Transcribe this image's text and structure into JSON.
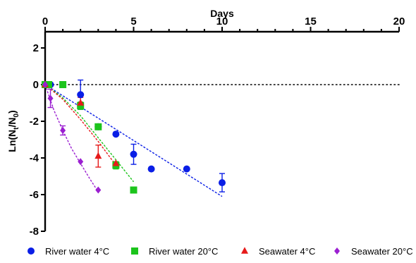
{
  "chart_data": {
    "type": "scatter",
    "title": "",
    "xlabel": "Days",
    "ylabel_parts": [
      "Ln(N",
      "t",
      "/N",
      "0",
      ")"
    ],
    "xlim": [
      0,
      20
    ],
    "ylim": [
      -8,
      2
    ],
    "x_ticks": [
      0,
      5,
      10,
      15,
      20
    ],
    "y_ticks": [
      2,
      0,
      -2,
      -4,
      -6,
      -8
    ],
    "x_minor_ticks": [
      1,
      2,
      3,
      4,
      6,
      7,
      8,
      9,
      11,
      12,
      13,
      14,
      16,
      17,
      18,
      19
    ],
    "x_axis_position": "top",
    "reference_line_y": 0,
    "legend_position": "bottom",
    "series": [
      {
        "name": "River water 4°C",
        "color": "#0a1ee6",
        "marker": "circle",
        "points": [
          {
            "x": 0,
            "y": 0
          },
          {
            "x": 0.1,
            "y": 0
          },
          {
            "x": 0.2,
            "y": 0
          },
          {
            "x": 0.3,
            "y": 0
          },
          {
            "x": 1,
            "y": 0
          },
          {
            "x": 2,
            "y": -0.55,
            "err": 0.8
          },
          {
            "x": 3,
            "y": -2.3
          },
          {
            "x": 4,
            "y": -2.7
          },
          {
            "x": 5,
            "y": -3.8,
            "err": 0.55
          },
          {
            "x": 6,
            "y": -4.6
          },
          {
            "x": 8,
            "y": -4.6
          },
          {
            "x": 10,
            "y": -5.35,
            "err": 0.5
          }
        ],
        "fit": [
          [
            0,
            0
          ],
          [
            10,
            -6.1
          ]
        ]
      },
      {
        "name": "River water 20°C",
        "color": "#1cc41c",
        "marker": "square",
        "points": [
          {
            "x": 0,
            "y": 0
          },
          {
            "x": 0.2,
            "y": 0
          },
          {
            "x": 1,
            "y": 0
          },
          {
            "x": 2,
            "y": -1.15,
            "err": 0.2
          },
          {
            "x": 3,
            "y": -2.3
          },
          {
            "x": 4,
            "y": -4.4,
            "err": 0.2
          },
          {
            "x": 5,
            "y": -5.75
          }
        ],
        "fit": [
          [
            0,
            0
          ],
          [
            1,
            -0.72
          ],
          [
            2,
            -1.7
          ],
          [
            3,
            -2.9
          ],
          [
            4,
            -4.1
          ],
          [
            5,
            -5.3
          ]
        ]
      },
      {
        "name": "Seawater 4°C",
        "color": "#e61a1a",
        "marker": "triangle",
        "points": [
          {
            "x": 0,
            "y": 0
          },
          {
            "x": 2,
            "y": -1.0,
            "err": 0.3
          },
          {
            "x": 3,
            "y": -3.9,
            "err": 0.6
          },
          {
            "x": 4,
            "y": -4.3
          }
        ],
        "fit": [
          [
            0,
            0
          ],
          [
            1,
            -0.8
          ],
          [
            2,
            -1.9
          ],
          [
            3,
            -3.1
          ],
          [
            4,
            -4.4
          ]
        ]
      },
      {
        "name": "Seawater 20°C",
        "color": "#9b1fd1",
        "marker": "diamond",
        "points": [
          {
            "x": 0,
            "y": 0
          },
          {
            "x": 0.3,
            "y": -0.75,
            "err": 0.5
          },
          {
            "x": 1,
            "y": -2.5,
            "err": 0.25
          },
          {
            "x": 2,
            "y": -4.2
          },
          {
            "x": 3,
            "y": -5.75
          }
        ],
        "fit": [
          [
            0,
            0
          ],
          [
            0.5,
            -1.4
          ],
          [
            1,
            -2.5
          ],
          [
            1.5,
            -3.5
          ],
          [
            2,
            -4.3
          ],
          [
            2.5,
            -5.1
          ],
          [
            3,
            -5.85
          ]
        ]
      }
    ]
  }
}
